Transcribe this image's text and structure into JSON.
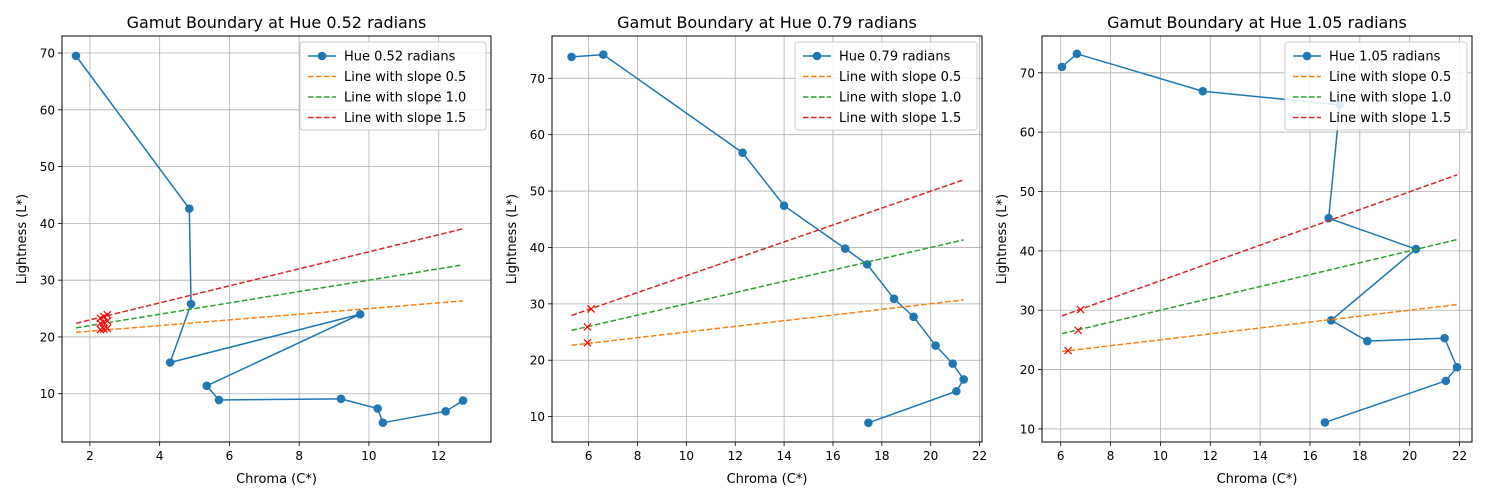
{
  "chart_data": [
    {
      "type": "line",
      "title": "Gamut Boundary at Hue 0.52 radians",
      "xlabel": "Chroma (C*)",
      "ylabel": "Lightness (L*)",
      "xlim": [
        1.2,
        13.5
      ],
      "ylim": [
        1.5,
        73
      ],
      "xticks": [
        2,
        4,
        6,
        8,
        10,
        12
      ],
      "yticks": [
        10,
        20,
        30,
        40,
        50,
        60,
        70
      ],
      "grid": true,
      "legend_position": "top-right",
      "series": [
        {
          "name": "Hue 0.52 radians",
          "color": "#1f77b4",
          "style": "solid-marker",
          "x": [
            1.6,
            4.85,
            4.9,
            4.3,
            9.75,
            5.35,
            5.7,
            9.2,
            10.25,
            10.4,
            12.2,
            12.7
          ],
          "y": [
            69.5,
            42.6,
            25.8,
            15.5,
            24.0,
            11.4,
            8.9,
            9.1,
            7.4,
            4.9,
            6.9,
            8.8
          ]
        },
        {
          "name": "Line with slope 0.5",
          "color": "#ff7f0e",
          "style": "dashed",
          "x": [
            1.6,
            12.7
          ],
          "y": [
            20.8,
            26.35
          ]
        },
        {
          "name": "Line with slope 1.0",
          "color": "#2ca02c",
          "style": "dashed",
          "x": [
            1.6,
            12.7
          ],
          "y": [
            21.6,
            32.7
          ]
        },
        {
          "name": "Line with slope 1.5",
          "color": "#d62728",
          "style": "dashed",
          "x": [
            1.6,
            12.7
          ],
          "y": [
            22.4,
            39.05
          ]
        }
      ],
      "markers": {
        "color": "#ff0000",
        "x": [
          2.3,
          2.4,
          2.5,
          2.3,
          2.4,
          2.5,
          2.3,
          2.4,
          2.5
        ],
        "y": [
          21.3,
          21.4,
          21.5,
          22.4,
          22.6,
          22.8,
          23.3,
          23.6,
          23.9
        ]
      }
    },
    {
      "type": "line",
      "title": "Gamut Boundary at Hue 0.79 radians",
      "xlabel": "Chroma (C*)",
      "ylabel": "Lightness (L*)",
      "xlim": [
        4.5,
        22.1
      ],
      "ylim": [
        5.5,
        77.5
      ],
      "xticks": [
        6,
        8,
        10,
        12,
        14,
        16,
        18,
        20,
        22
      ],
      "yticks": [
        10,
        20,
        30,
        40,
        50,
        60,
        70
      ],
      "grid": true,
      "legend_position": "top-right",
      "series": [
        {
          "name": "Hue 0.79 radians",
          "color": "#1f77b4",
          "style": "solid-marker",
          "x": [
            5.3,
            6.6,
            12.3,
            14.0,
            16.5,
            17.4,
            18.5,
            19.3,
            20.2,
            20.9,
            21.35,
            21.05,
            17.45
          ],
          "y": [
            73.8,
            74.2,
            56.8,
            47.4,
            39.8,
            37.0,
            30.9,
            27.7,
            22.6,
            19.4,
            16.6,
            14.5,
            8.9
          ]
        },
        {
          "name": "Line with slope 0.5",
          "color": "#ff7f0e",
          "style": "dashed",
          "x": [
            5.3,
            21.35
          ],
          "y": [
            22.65,
            30.7
          ]
        },
        {
          "name": "Line with slope 1.0",
          "color": "#2ca02c",
          "style": "dashed",
          "x": [
            5.3,
            21.35
          ],
          "y": [
            25.3,
            41.35
          ]
        },
        {
          "name": "Line with slope 1.5",
          "color": "#d62728",
          "style": "dashed",
          "x": [
            5.3,
            21.35
          ],
          "y": [
            27.95,
            52.0
          ]
        }
      ],
      "markers": {
        "color": "#ff0000",
        "x": [
          5.95,
          5.95,
          6.1
        ],
        "y": [
          23.1,
          25.9,
          29.1
        ]
      }
    },
    {
      "type": "line",
      "title": "Gamut Boundary at Hue 1.05 radians",
      "xlabel": "Chroma (C*)",
      "ylabel": "Lightness (L*)",
      "xlim": [
        5.25,
        22.5
      ],
      "ylim": [
        7.8,
        76.2
      ],
      "xticks": [
        6,
        8,
        10,
        12,
        14,
        16,
        18,
        20,
        22
      ],
      "yticks": [
        10,
        20,
        30,
        40,
        50,
        60,
        70
      ],
      "grid": true,
      "legend_position": "top-right",
      "series": [
        {
          "name": "Hue 1.05 radians",
          "color": "#1f77b4",
          "style": "solid-marker",
          "x": [
            6.05,
            6.65,
            11.7,
            17.2,
            16.75,
            20.25,
            16.85,
            18.3,
            21.4,
            21.9,
            21.45,
            16.6
          ],
          "y": [
            71.0,
            73.2,
            66.9,
            64.6,
            45.5,
            40.3,
            28.3,
            24.8,
            25.3,
            20.4,
            18.1,
            11.1
          ]
        },
        {
          "name": "Line with slope 0.5",
          "color": "#ff7f0e",
          "style": "dashed",
          "x": [
            6.05,
            21.9
          ],
          "y": [
            23.05,
            30.95
          ]
        },
        {
          "name": "Line with slope 1.0",
          "color": "#2ca02c",
          "style": "dashed",
          "x": [
            6.05,
            21.9
          ],
          "y": [
            26.05,
            41.9
          ]
        },
        {
          "name": "Line with slope 1.5",
          "color": "#d62728",
          "style": "dashed",
          "x": [
            6.05,
            21.9
          ],
          "y": [
            29.05,
            52.8
          ]
        }
      ],
      "markers": {
        "color": "#ff0000",
        "x": [
          6.3,
          6.7,
          6.8
        ],
        "y": [
          23.2,
          26.6,
          30.1
        ]
      }
    }
  ]
}
